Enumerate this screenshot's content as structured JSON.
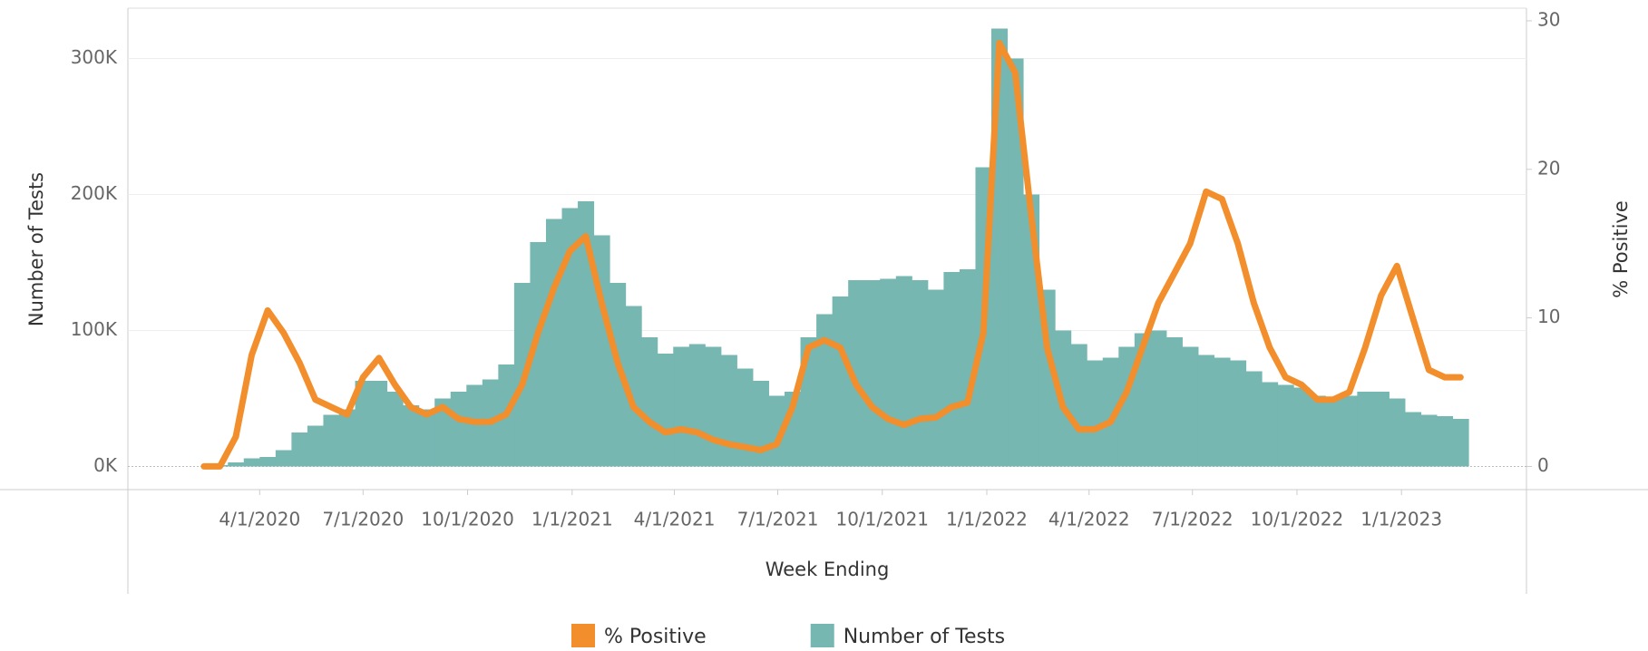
{
  "chart_data": {
    "type": "combo",
    "x_label": "Week Ending",
    "y_label": "Number of Tests",
    "y2_label": "% Positive",
    "x": [
      "2/5/2020",
      "2/19/2020",
      "3/4/2020",
      "3/18/2020",
      "4/1/2020",
      "4/15/2020",
      "4/29/2020",
      "5/13/2020",
      "5/27/2020",
      "6/10/2020",
      "6/24/2020",
      "7/8/2020",
      "7/22/2020",
      "8/5/2020",
      "8/19/2020",
      "9/2/2020",
      "9/16/2020",
      "9/30/2020",
      "10/14/2020",
      "10/28/2020",
      "11/11/2020",
      "11/25/2020",
      "12/9/2020",
      "12/23/2020",
      "1/6/2021",
      "1/20/2021",
      "2/3/2021",
      "2/17/2021",
      "3/3/2021",
      "3/17/2021",
      "3/31/2021",
      "4/14/2021",
      "4/28/2021",
      "5/12/2021",
      "5/26/2021",
      "6/9/2021",
      "6/23/2021",
      "7/7/2021",
      "7/21/2021",
      "8/4/2021",
      "8/18/2021",
      "9/1/2021",
      "9/15/2021",
      "9/29/2021",
      "10/13/2021",
      "10/27/2021",
      "11/10/2021",
      "11/24/2021",
      "12/8/2021",
      "12/22/2021",
      "1/5/2022",
      "1/19/2022",
      "2/2/2022",
      "2/16/2022",
      "3/2/2022",
      "3/16/2022",
      "3/30/2022",
      "4/13/2022",
      "4/27/2022",
      "5/11/2022",
      "5/25/2022",
      "6/8/2022",
      "6/22/2022",
      "7/6/2022",
      "7/20/2022",
      "8/3/2022",
      "8/17/2022",
      "8/31/2022",
      "9/14/2022",
      "9/28/2022",
      "10/12/2022",
      "10/26/2022",
      "11/9/2022",
      "11/23/2022",
      "12/7/2022",
      "12/21/2022",
      "1/4/2023",
      "1/18/2023",
      "2/1/2023",
      "2/15/2023"
    ],
    "series": [
      {
        "name": "% Positive",
        "type": "line",
        "axis": "y2",
        "color": "#f28e2b",
        "values": [
          0,
          0,
          2,
          7.5,
          10.5,
          9,
          7,
          4.5,
          4,
          3.5,
          6,
          7.3,
          5.5,
          4,
          3.5,
          4,
          3.2,
          3,
          3,
          3.5,
          5.5,
          9,
          12,
          14.5,
          15.5,
          11,
          7,
          4,
          3,
          2.3,
          2.5,
          2.3,
          1.8,
          1.5,
          1.3,
          1.1,
          1.5,
          4,
          8,
          8.5,
          8,
          5.5,
          4,
          3.2,
          2.8,
          3.2,
          3.3,
          4,
          4.3,
          9,
          28.5,
          26.5,
          17,
          8,
          4,
          2.5,
          2.5,
          3,
          5,
          8,
          11,
          13,
          15,
          18.5,
          18,
          15,
          11,
          8,
          6,
          5.5,
          4.5,
          4.5,
          5,
          8,
          11.5,
          13.5,
          10,
          6.5,
          6,
          6
        ]
      },
      {
        "name": "Number of Tests",
        "type": "bar",
        "axis": "y",
        "color": "#76b7b2",
        "values": [
          0,
          1000,
          3000,
          6000,
          7000,
          12000,
          25000,
          30000,
          38000,
          42000,
          63000,
          63000,
          55000,
          45000,
          42000,
          50000,
          55000,
          60000,
          64000,
          75000,
          135000,
          165000,
          182000,
          190000,
          195000,
          170000,
          135000,
          118000,
          95000,
          83000,
          88000,
          90000,
          88000,
          82000,
          72000,
          63000,
          52000,
          55000,
          95000,
          112000,
          125000,
          137000,
          137000,
          138000,
          140000,
          137000,
          130000,
          143000,
          145000,
          220000,
          322000,
          300000,
          200000,
          130000,
          100000,
          90000,
          78000,
          80000,
          88000,
          98000,
          100000,
          95000,
          88000,
          82000,
          80000,
          78000,
          70000,
          62000,
          60000,
          58000,
          52000,
          50000,
          52000,
          55000,
          55000,
          50000,
          40000,
          38000,
          37000,
          35000
        ]
      }
    ],
    "xlim": [
      "12/7/2019",
      "4/21/2023"
    ],
    "xticks": [
      "4/1/2020",
      "7/1/2020",
      "10/1/2020",
      "1/1/2021",
      "4/1/2021",
      "7/1/2021",
      "10/1/2021",
      "1/1/2022",
      "4/1/2022",
      "7/1/2022",
      "10/1/2022",
      "1/1/2023"
    ],
    "ylim": [
      -17000,
      337000
    ],
    "yticks": [
      {
        "value": 0,
        "label": "0K"
      },
      {
        "value": 100000,
        "label": "100K"
      },
      {
        "value": 200000,
        "label": "200K"
      },
      {
        "value": 300000,
        "label": "300K"
      }
    ],
    "y2lim": [
      -1.56,
      30.85
    ],
    "y2ticks": [
      0,
      10,
      20,
      30
    ],
    "grid": true,
    "legend": "bottom"
  }
}
